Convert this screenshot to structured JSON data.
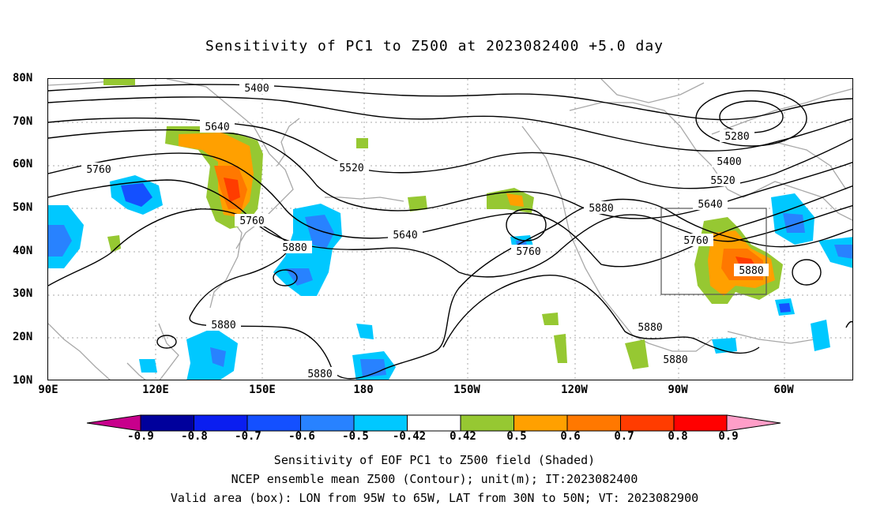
{
  "title": "Sensitivity of PC1 to Z500 at 2023082400 +5.0 day",
  "lat_labels": [
    "80N",
    "70N",
    "60N",
    "50N",
    "40N",
    "30N",
    "20N",
    "10N"
  ],
  "lon_labels": [
    "90E",
    "120E",
    "150E",
    "180",
    "150W",
    "120W",
    "90W",
    "60W"
  ],
  "contour_labels": {
    "c5400_top": "5400",
    "c5640_left": "5640",
    "c5760_left": "5760",
    "c5520": "5520",
    "c5760_mid": "5760",
    "c5880_mid": "5880",
    "c5640_mid": "5640",
    "c5760_right": "5760",
    "c5880_top": "5880",
    "c5880_bl": "5880",
    "c5880_bl2": "5880",
    "c5880_br": "5880",
    "c5880_br2": "5880",
    "c5280": "5280",
    "c5400_r": "5400",
    "c5520_r": "5520",
    "c5640_r": "5640",
    "c5760_box": "5760",
    "c5880_box": "5880"
  },
  "colorbar": {
    "labels": [
      "-0.9",
      "-0.8",
      "-0.7",
      "-0.6",
      "-0.5",
      "-0.42",
      "0.42",
      "0.5",
      "0.6",
      "0.7",
      "0.8",
      "0.9"
    ],
    "colors": [
      "#00009c",
      "#0a1ef0",
      "#1450ff",
      "#2882ff",
      "#00c8ff",
      "#ffffff",
      "#96c832",
      "#ffa000",
      "#ff7800",
      "#ff3c00",
      "#ff0000"
    ],
    "end_low": "#c8008c",
    "end_high": "#ff9ec8"
  },
  "captions": [
    "Sensitivity of EOF PC1 to Z500 field (Shaded)",
    "NCEP ensemble mean Z500 (Contour); unit(m); IT:2023082400",
    "Valid area (box): LON from 95W to 65W, LAT from 30N to 50N; VT: 2023082900"
  ]
}
